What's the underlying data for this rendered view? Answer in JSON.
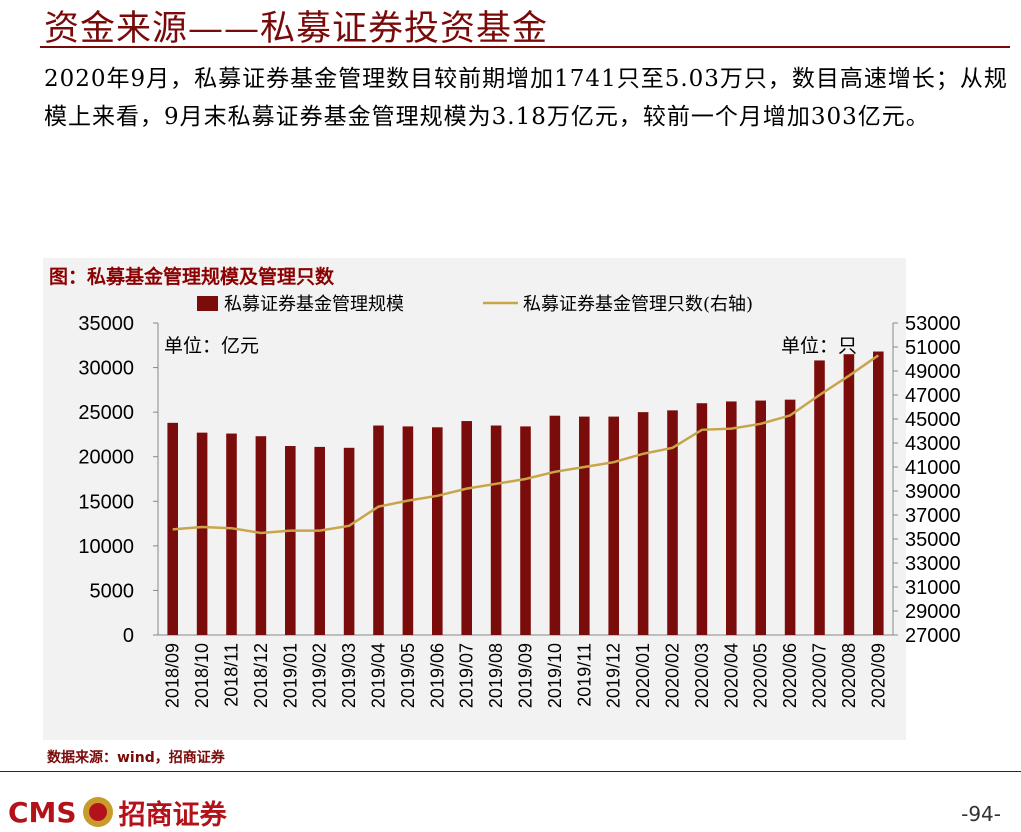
{
  "header": {
    "title": "资金来源——私募证券投资基金",
    "paragraph": "2020年9月，私募证券基金管理数目较前期增加1741只至5.03万只，数目高速增长；从规模上来看，9月末私募证券基金管理规模为3.18万亿元，较前一个月增加303亿元。"
  },
  "chart_title": "图：私募基金管理规模及管理只数",
  "source": "数据来源：wind，招商证券",
  "footer": {
    "logo_text_en": "CMS",
    "logo_text_cn": "招商证券",
    "page_number": "-94-"
  },
  "colors": {
    "bar": "#7b0c0c",
    "line": "#c8a54a",
    "title": "#7a0a0a",
    "panel_bg": "#f2f2f2"
  },
  "chart_data": {
    "type": "bar",
    "categories": [
      "2018/09",
      "2018/10",
      "2018/11",
      "2018/12",
      "2019/01",
      "2019/02",
      "2019/03",
      "2019/04",
      "2019/05",
      "2019/06",
      "2019/07",
      "2019/08",
      "2019/09",
      "2019/10",
      "2019/11",
      "2019/12",
      "2020/01",
      "2020/02",
      "2020/03",
      "2020/04",
      "2020/05",
      "2020/06",
      "2020/07",
      "2020/08",
      "2020/09"
    ],
    "series": [
      {
        "name": "私募证券基金管理规模",
        "type": "bar",
        "axis": "left",
        "values": [
          23800,
          22700,
          22600,
          22300,
          21200,
          21100,
          21000,
          23500,
          23400,
          23300,
          24000,
          23500,
          23400,
          24600,
          24500,
          24500,
          25000,
          25200,
          26000,
          26200,
          26300,
          26400,
          30800,
          31500,
          31800
        ]
      },
      {
        "name": "私募证券基金管理只数(右轴)",
        "type": "line",
        "axis": "right",
        "values": [
          35800,
          36000,
          35900,
          35500,
          35700,
          35700,
          36100,
          37700,
          38200,
          38600,
          39200,
          39600,
          40000,
          40600,
          41000,
          41400,
          42100,
          42600,
          44100,
          44200,
          44600,
          45300,
          47000,
          48600,
          50300
        ]
      }
    ],
    "y_left": {
      "min": 0,
      "max": 35000,
      "step": 5000,
      "unit_label": "单位：亿元"
    },
    "y_right": {
      "min": 27000,
      "max": 53000,
      "step": 2000,
      "unit_label": "单位：只"
    },
    "legend_position": "top",
    "grid": false
  }
}
